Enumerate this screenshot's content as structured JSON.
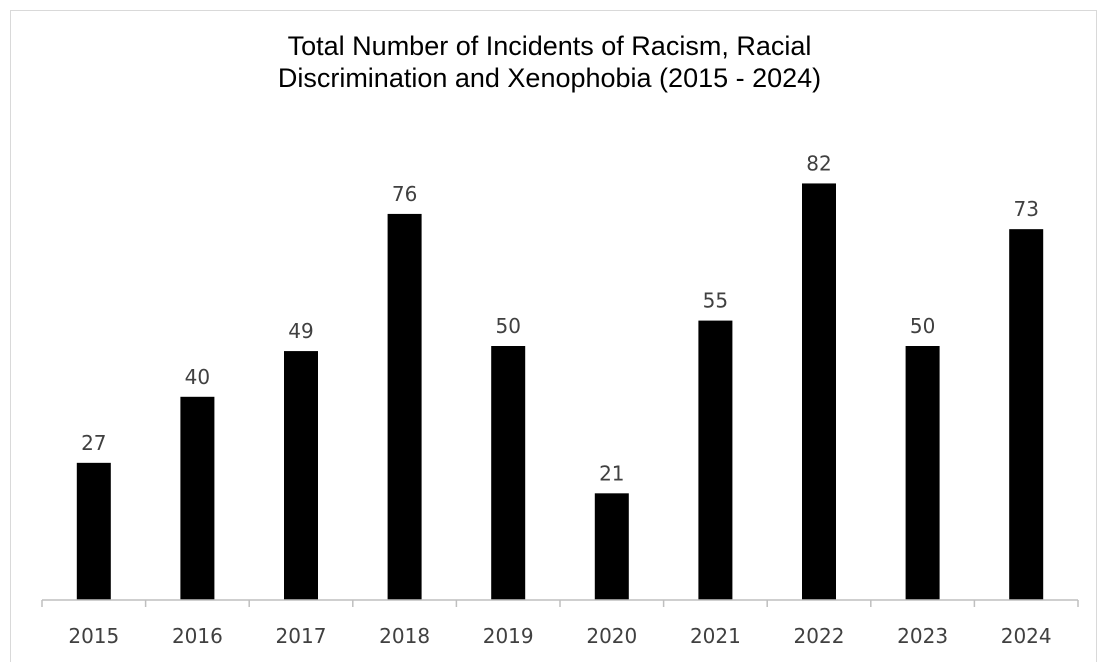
{
  "chart_data": {
    "type": "bar",
    "title_lines": [
      "Total Number of Incidents of Racism, Racial",
      "Discrimination and Xenophobia (2015 - 2024)"
    ],
    "categories": [
      "2015",
      "2016",
      "2017",
      "2018",
      "2019",
      "2020",
      "2021",
      "2022",
      "2023",
      "2024"
    ],
    "values": [
      27,
      40,
      49,
      76,
      50,
      21,
      55,
      82,
      50,
      73
    ],
    "data_labels": [
      "27",
      "40",
      "49",
      "76",
      "50",
      "21",
      "55",
      "82",
      "50",
      "73"
    ],
    "xlabel": "",
    "ylabel": "",
    "ylim": [
      0,
      90
    ],
    "grid": false,
    "legend": "none",
    "bar_color": "#000000",
    "axis_color": "#bfbfbf",
    "label_color": "#404040"
  }
}
